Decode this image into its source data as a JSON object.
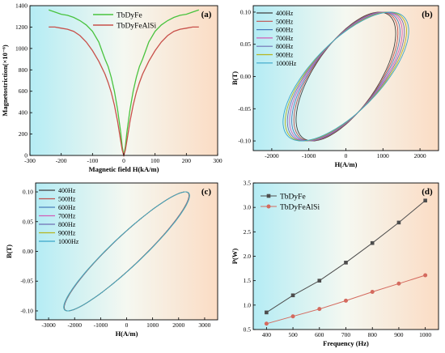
{
  "chart_data": [
    {
      "panel": "(a)",
      "type": "line",
      "xlabel": "Magnetic field H(kA/m)",
      "ylabel": "Magnetostriction(×10⁻⁶)",
      "xlim": [
        -300,
        300
      ],
      "ylim": [
        0,
        1400
      ],
      "xticks": [
        -300,
        -200,
        -100,
        0,
        100,
        200,
        300
      ],
      "yticks": [
        0,
        200,
        400,
        600,
        800,
        1000,
        1200,
        1400
      ],
      "legend_position": "top-center",
      "series": [
        {
          "name": "TbDyFe",
          "color": "#49c33e",
          "x": [
            0,
            5,
            10,
            20,
            30,
            40,
            50,
            60,
            70,
            80,
            100,
            120,
            140,
            160,
            180,
            200,
            220,
            240
          ],
          "y": [
            0,
            80,
            220,
            430,
            600,
            730,
            830,
            900,
            980,
            1060,
            1160,
            1220,
            1260,
            1290,
            1310,
            1320,
            1340,
            1360
          ]
        },
        {
          "name": "TbDyFeAlSi",
          "color": "#c8504a",
          "x": [
            0,
            5,
            10,
            20,
            30,
            40,
            50,
            60,
            80,
            100,
            120,
            140,
            160,
            180,
            200,
            220,
            240
          ],
          "y": [
            0,
            50,
            140,
            320,
            470,
            590,
            680,
            760,
            880,
            980,
            1060,
            1120,
            1160,
            1180,
            1190,
            1200,
            1200
          ]
        }
      ]
    },
    {
      "panel": "(b)",
      "type": "line",
      "xlabel": "H(A/m)",
      "ylabel": "B(T)",
      "xlim": [
        -2500,
        2500
      ],
      "ylim": [
        -0.115,
        0.11
      ],
      "xticks": [
        -2000,
        -1000,
        0,
        1000,
        2000
      ],
      "yticks": [
        -0.1,
        -0.05,
        0.0,
        0.05,
        0.1
      ],
      "legend_position": "top-left",
      "loop_model": {
        "Bmax": 0.1,
        "H_width": [
          1780,
          1830,
          1880,
          1930,
          1980,
          2030,
          2080
        ],
        "H_shift": [
          900,
          950,
          1000,
          1050,
          1100,
          1150,
          1200
        ],
        "H_coercive": [
          1150,
          1230,
          1310,
          1390,
          1470,
          1550,
          1630
        ]
      },
      "series": [
        {
          "name": "400Hz",
          "color": "#404040"
        },
        {
          "name": "500Hz",
          "color": "#c0504d"
        },
        {
          "name": "600Hz",
          "color": "#4a7ebb"
        },
        {
          "name": "700Hz",
          "color": "#d25db7"
        },
        {
          "name": "800Hz",
          "color": "#6f6fb3"
        },
        {
          "name": "900Hz",
          "color": "#b5b520"
        },
        {
          "name": "1000Hz",
          "color": "#3aa6c9"
        }
      ]
    },
    {
      "panel": "(c)",
      "type": "line",
      "xlabel": "H(A/m)",
      "ylabel": "B(T)",
      "xlim": [
        -3500,
        3500
      ],
      "ylim": [
        -0.115,
        0.115
      ],
      "xticks": [
        -3000,
        -2000,
        -1000,
        0,
        1000,
        2000,
        3000
      ],
      "yticks": [
        -0.1,
        -0.05,
        0.0,
        0.05,
        0.1
      ],
      "legend_position": "top-left",
      "loop_model": {
        "Bmax": 0.1,
        "H_width": 2380,
        "H_shift": 2250,
        "H_coercive": 1200
      },
      "series": [
        {
          "name": "400Hz",
          "color": "#404040"
        },
        {
          "name": "500Hz",
          "color": "#c0504d"
        },
        {
          "name": "600Hz",
          "color": "#4a7ebb"
        },
        {
          "name": "700Hz",
          "color": "#d25db7"
        },
        {
          "name": "800Hz",
          "color": "#6f6fb3"
        },
        {
          "name": "900Hz",
          "color": "#b5b520"
        },
        {
          "name": "1000Hz",
          "color": "#3aa6c9"
        }
      ]
    },
    {
      "panel": "(d)",
      "type": "line",
      "xlabel": "Frequency (Hz)",
      "ylabel": "P(W)",
      "xlim": [
        350,
        1050
      ],
      "ylim": [
        0.5,
        3.5
      ],
      "xticks": [
        400,
        500,
        600,
        700,
        800,
        900,
        1000
      ],
      "yticks": [
        0.5,
        1.0,
        1.5,
        2.0,
        2.5,
        3.0,
        3.5
      ],
      "legend_position": "top-left",
      "series": [
        {
          "name": "TbDyFe",
          "color": "#4d4d4d",
          "marker": "square",
          "x": [
            400,
            500,
            600,
            700,
            800,
            900,
            1000
          ],
          "y": [
            0.85,
            1.2,
            1.5,
            1.87,
            2.27,
            2.69,
            3.14
          ]
        },
        {
          "name": "TbDyFeAlSi",
          "color": "#d46a5e",
          "marker": "circle",
          "x": [
            400,
            500,
            600,
            700,
            800,
            900,
            1000
          ],
          "y": [
            0.62,
            0.77,
            0.92,
            1.09,
            1.27,
            1.44,
            1.61
          ]
        }
      ]
    }
  ]
}
